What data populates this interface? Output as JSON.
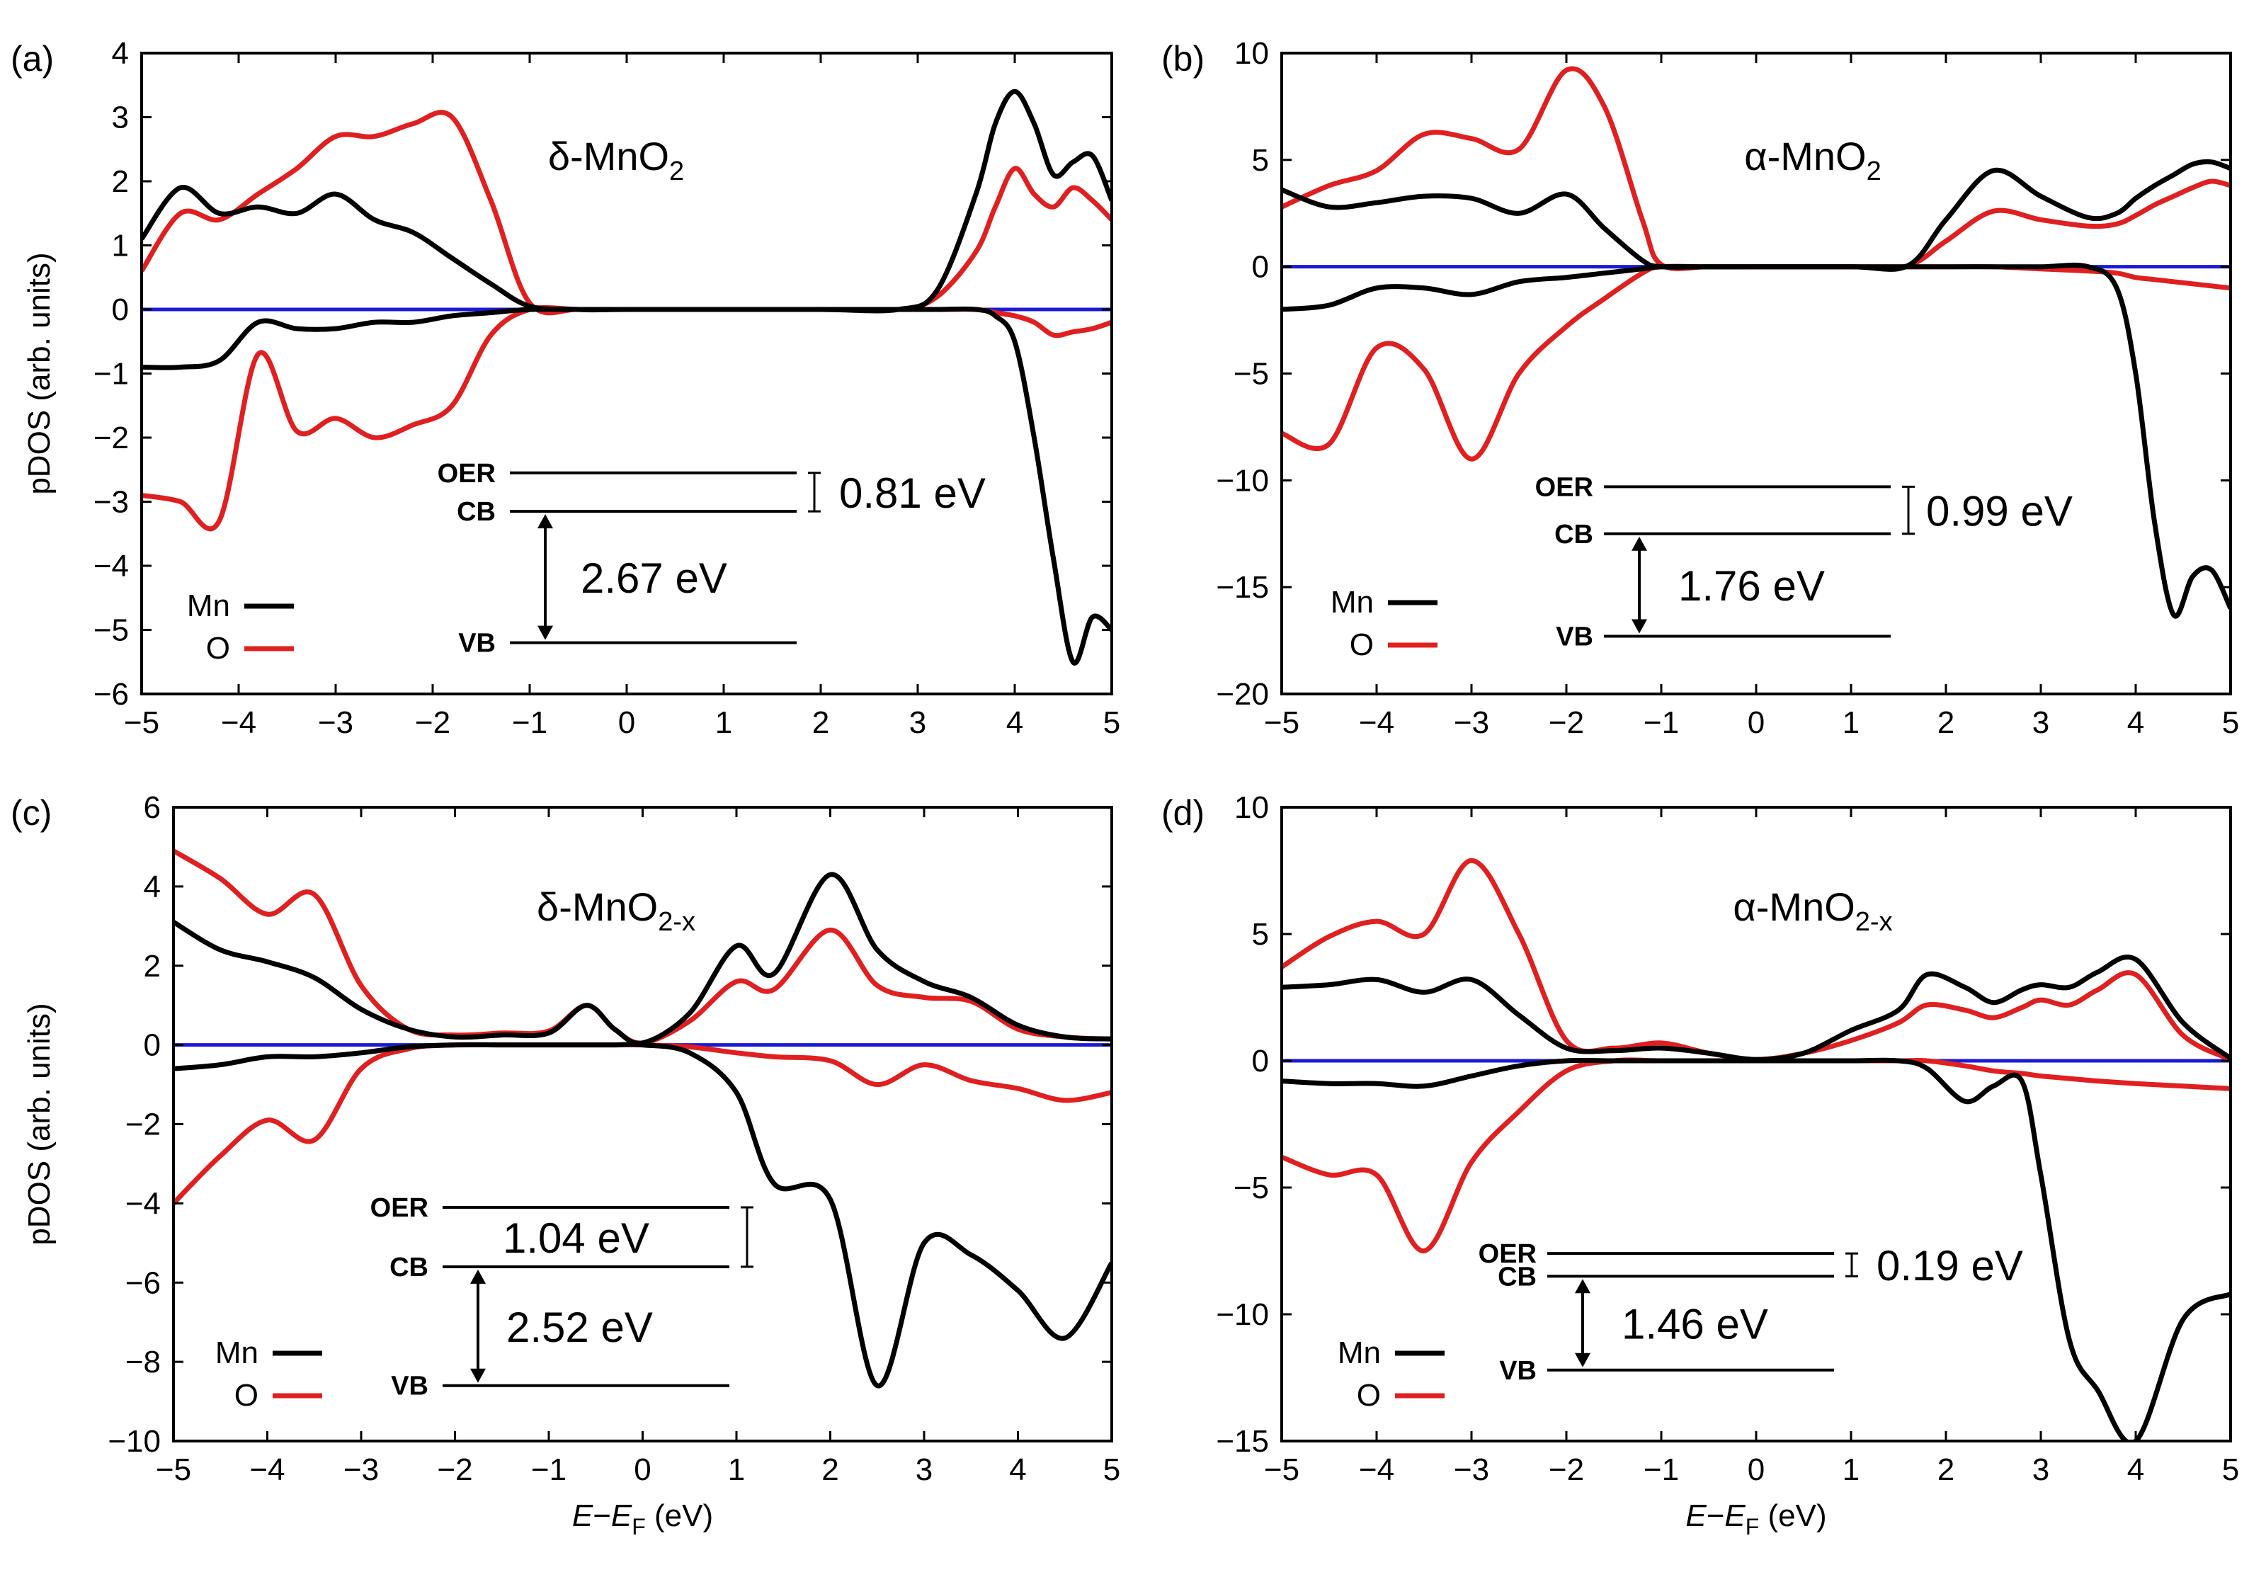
{
  "colors": {
    "mn": "#000000",
    "o": "#e02020",
    "zero": "#1a1ad4"
  },
  "common": {
    "ylabel": "pDOS (arb. units)",
    "xlabel_E": "E",
    "xlabel_minus": "−",
    "xlabel_EF": "E",
    "xlabel_F": "F",
    "xlabel_unit": " (eV)",
    "legend_mn": "Mn",
    "legend_o": "O",
    "oer_label": "OER",
    "cb_label": "CB",
    "vb_label": "VB"
  },
  "chart_data": [
    {
      "type": "line",
      "panel": "(a)",
      "title_main": "δ-MnO",
      "title_sub": "2",
      "xlim": [
        -5,
        5
      ],
      "ylim": [
        -6,
        4
      ],
      "xticks": [
        "−5",
        "−4",
        "−3",
        "−2",
        "−1",
        "0",
        "1",
        "2",
        "3",
        "4",
        "5"
      ],
      "yticks": [
        "4",
        "3",
        "2",
        "1",
        "0",
        "−1",
        "−2",
        "−3",
        "−4",
        "−5",
        "−6"
      ],
      "x": [
        -5,
        -4.6,
        -4.2,
        -3.8,
        -3.4,
        -3,
        -2.6,
        -2.2,
        -1.8,
        -1.4,
        -1,
        -0.5,
        0,
        1,
        2,
        2.8,
        3.2,
        3.6,
        3.8,
        4,
        4.2,
        4.4,
        4.6,
        4.8,
        5
      ],
      "series": [
        {
          "name": "Mn up",
          "values": [
            1.1,
            1.9,
            1.5,
            1.6,
            1.5,
            1.8,
            1.4,
            1.2,
            0.8,
            0.4,
            0.05,
            0,
            0,
            0,
            0,
            0,
            0.3,
            1.8,
            2.9,
            3.4,
            2.9,
            2.1,
            2.3,
            2.4,
            1.7
          ]
        },
        {
          "name": "O up",
          "values": [
            0.6,
            1.5,
            1.4,
            1.8,
            2.2,
            2.7,
            2.7,
            2.9,
            3.0,
            1.7,
            0.1,
            0,
            0,
            0,
            0,
            0,
            0.2,
            0.9,
            1.6,
            2.2,
            1.8,
            1.6,
            1.9,
            1.7,
            1.4
          ]
        },
        {
          "name": "Mn down",
          "values": [
            -0.9,
            -0.9,
            -0.8,
            -0.2,
            -0.3,
            -0.3,
            -0.2,
            -0.2,
            -0.1,
            -0.05,
            0,
            0,
            0,
            0,
            0,
            0,
            0,
            0,
            -0.1,
            -0.5,
            -2.0,
            -3.9,
            -5.5,
            -4.8,
            -5.0
          ]
        },
        {
          "name": "O down",
          "values": [
            -2.9,
            -3.0,
            -3.3,
            -0.7,
            -1.9,
            -1.7,
            -2.0,
            -1.8,
            -1.5,
            -0.4,
            0,
            0,
            0,
            0,
            0,
            0,
            0,
            0,
            -0.05,
            -0.1,
            -0.2,
            -0.4,
            -0.35,
            -0.3,
            -0.2
          ]
        }
      ],
      "levels": {
        "oer": -2.55,
        "cb": -3.15,
        "vb": -5.2,
        "x0": -1.2,
        "x1": 1.75
      },
      "gap_top": "0.81 eV",
      "gap_bottom": "2.67 eV"
    },
    {
      "type": "line",
      "panel": "(b)",
      "title_main": "α-MnO",
      "title_sub": "2",
      "xlim": [
        -5,
        5
      ],
      "ylim": [
        -20,
        10
      ],
      "xticks": [
        "−5",
        "−4",
        "−3",
        "−2",
        "−1",
        "0",
        "1",
        "2",
        "3",
        "4",
        "5"
      ],
      "yticks": [
        "10",
        "5",
        "0",
        "−5",
        "−10",
        "−15",
        "−20"
      ],
      "x": [
        -5,
        -4.5,
        -4,
        -3.5,
        -3,
        -2.5,
        -2,
        -1.6,
        -1.2,
        -1,
        -0.5,
        0,
        1,
        1.6,
        2,
        2.5,
        3,
        3.5,
        3.8,
        4,
        4.2,
        4.4,
        4.6,
        4.8,
        5
      ],
      "series": [
        {
          "name": "Mn up",
          "values": [
            3.6,
            2.8,
            3.0,
            3.3,
            3.2,
            2.5,
            3.4,
            1.8,
            0.3,
            0,
            0,
            0,
            0,
            0.05,
            2.2,
            4.5,
            3.3,
            2.3,
            2.5,
            3.2,
            3.8,
            4.3,
            4.8,
            4.9,
            4.6
          ]
        },
        {
          "name": "O up",
          "values": [
            2.8,
            3.8,
            4.5,
            6.2,
            6.0,
            5.5,
            9.2,
            7.5,
            2.2,
            0.1,
            0,
            0,
            0,
            0.05,
            1.2,
            2.6,
            2.2,
            1.9,
            2.0,
            2.4,
            2.9,
            3.3,
            3.7,
            4.0,
            3.8
          ]
        },
        {
          "name": "Mn down",
          "values": [
            -2.0,
            -1.8,
            -1.0,
            -1.0,
            -1.3,
            -0.7,
            -0.5,
            -0.3,
            -0.1,
            0,
            0,
            0,
            0,
            0,
            0,
            0,
            0,
            0,
            -1.0,
            -5.0,
            -12.0,
            -16.3,
            -14.5,
            -14.2,
            -16.0
          ]
        },
        {
          "name": "O down",
          "values": [
            -7.8,
            -8.3,
            -3.8,
            -4.8,
            -9.0,
            -5.0,
            -2.8,
            -1.5,
            -0.3,
            0,
            0,
            0,
            0,
            0,
            0,
            0,
            -0.1,
            -0.2,
            -0.3,
            -0.5,
            -0.6,
            -0.7,
            -0.8,
            -0.9,
            -1.0
          ]
        }
      ],
      "levels": {
        "oer": -10.3,
        "cb": -12.5,
        "vb": -17.3,
        "x0": -1.6,
        "x1": 1.4
      },
      "gap_top": "0.99 eV",
      "gap_bottom": "1.76 eV"
    },
    {
      "type": "line",
      "panel": "(c)",
      "title_main": "δ-MnO",
      "title_sub": "2-x",
      "xlim": [
        -5,
        5
      ],
      "ylim": [
        -10,
        6
      ],
      "xticks": [
        "−5",
        "−4",
        "−3",
        "−2",
        "−1",
        "0",
        "1",
        "2",
        "3",
        "4",
        "5"
      ],
      "yticks": [
        "6",
        "4",
        "2",
        "0",
        "−2",
        "−4",
        "−6",
        "−8",
        "−10"
      ],
      "x": [
        -5,
        -4.5,
        -4,
        -3.5,
        -3,
        -2.5,
        -2,
        -1.5,
        -1,
        -0.6,
        -0.3,
        0,
        0.5,
        1,
        1.4,
        2,
        2.5,
        3,
        3.5,
        4,
        4.5,
        5
      ],
      "series": [
        {
          "name": "Mn up",
          "values": [
            3.1,
            2.4,
            2.1,
            1.7,
            0.9,
            0.4,
            0.2,
            0.25,
            0.3,
            1.0,
            0.4,
            0.05,
            0.8,
            2.5,
            1.8,
            4.3,
            2.4,
            1.6,
            1.2,
            0.5,
            0.2,
            0.15
          ]
        },
        {
          "name": "O up",
          "values": [
            4.9,
            4.2,
            3.3,
            3.8,
            1.5,
            0.4,
            0.25,
            0.3,
            0.35,
            1.0,
            0.4,
            0.05,
            0.6,
            1.6,
            1.4,
            2.9,
            1.5,
            1.2,
            1.1,
            0.4,
            0.2,
            0.15
          ]
        },
        {
          "name": "Mn down",
          "values": [
            -0.6,
            -0.5,
            -0.3,
            -0.3,
            -0.2,
            -0.05,
            0,
            0,
            0,
            0,
            0,
            0,
            -0.2,
            -1.2,
            -3.5,
            -3.9,
            -8.6,
            -5.0,
            -5.3,
            -6.2,
            -7.4,
            -5.5
          ]
        },
        {
          "name": "O down",
          "values": [
            -4.0,
            -2.8,
            -1.9,
            -2.4,
            -0.6,
            -0.1,
            0,
            0,
            0,
            0,
            0,
            0,
            -0.05,
            -0.2,
            -0.3,
            -0.4,
            -1.0,
            -0.5,
            -0.9,
            -1.1,
            -1.4,
            -1.2
          ]
        }
      ],
      "levels": {
        "oer": -4.1,
        "cb": -5.6,
        "vb": -8.6,
        "x0": -2.1,
        "x1": 0.85
      },
      "gap_top": "1.04 eV",
      "gap_bottom": "2.52 eV"
    },
    {
      "type": "line",
      "panel": "(d)",
      "title_main": "α-MnO",
      "title_sub": "2-x",
      "xlim": [
        -5,
        5
      ],
      "ylim": [
        -15,
        10
      ],
      "xticks": [
        "−5",
        "−4",
        "−3",
        "−2",
        "−1",
        "0",
        "1",
        "2",
        "3",
        "4",
        "5"
      ],
      "yticks": [
        "10",
        "5",
        "0",
        "−5",
        "−10",
        "−15"
      ],
      "x": [
        -5,
        -4.5,
        -4,
        -3.5,
        -3,
        -2.5,
        -2,
        -1.5,
        -1,
        -0.5,
        0,
        0.5,
        1,
        1.5,
        1.8,
        2.2,
        2.5,
        2.8,
        3,
        3.3,
        3.6,
        4,
        4.5,
        5
      ],
      "series": [
        {
          "name": "Mn up",
          "values": [
            2.9,
            3.0,
            3.2,
            2.7,
            3.2,
            1.8,
            0.5,
            0.4,
            0.5,
            0.3,
            0.05,
            0.3,
            1.2,
            2.0,
            3.4,
            2.9,
            2.3,
            2.8,
            3.0,
            2.9,
            3.5,
            4.0,
            1.5,
            0.1
          ]
        },
        {
          "name": "O up",
          "values": [
            3.7,
            4.9,
            5.5,
            5.0,
            7.9,
            5.0,
            0.8,
            0.5,
            0.7,
            0.3,
            0.05,
            0.3,
            0.8,
            1.5,
            2.2,
            2.0,
            1.7,
            2.1,
            2.4,
            2.2,
            2.8,
            3.4,
            1.0,
            0.05
          ]
        },
        {
          "name": "Mn down",
          "values": [
            -0.8,
            -0.9,
            -0.9,
            -1.0,
            -0.6,
            -0.2,
            0,
            0,
            0,
            0,
            0,
            0,
            0,
            0,
            -0.3,
            -1.6,
            -1.0,
            -0.8,
            -4.5,
            -11.0,
            -13.0,
            -15.0,
            -10.2,
            -9.2
          ]
        },
        {
          "name": "O down",
          "values": [
            -3.8,
            -4.5,
            -4.5,
            -7.5,
            -4.0,
            -2.0,
            -0.4,
            0,
            0,
            0,
            0,
            0,
            0,
            0,
            0,
            -0.2,
            -0.4,
            -0.5,
            -0.6,
            -0.7,
            -0.8,
            -0.9,
            -1.0,
            -1.1
          ]
        }
      ],
      "levels": {
        "oer": -7.6,
        "cb": -8.5,
        "vb": -12.2,
        "x0": -2.4,
        "x1": 0.7
      },
      "gap_top": "0.19 eV",
      "gap_bottom": "1.46 eV"
    }
  ]
}
